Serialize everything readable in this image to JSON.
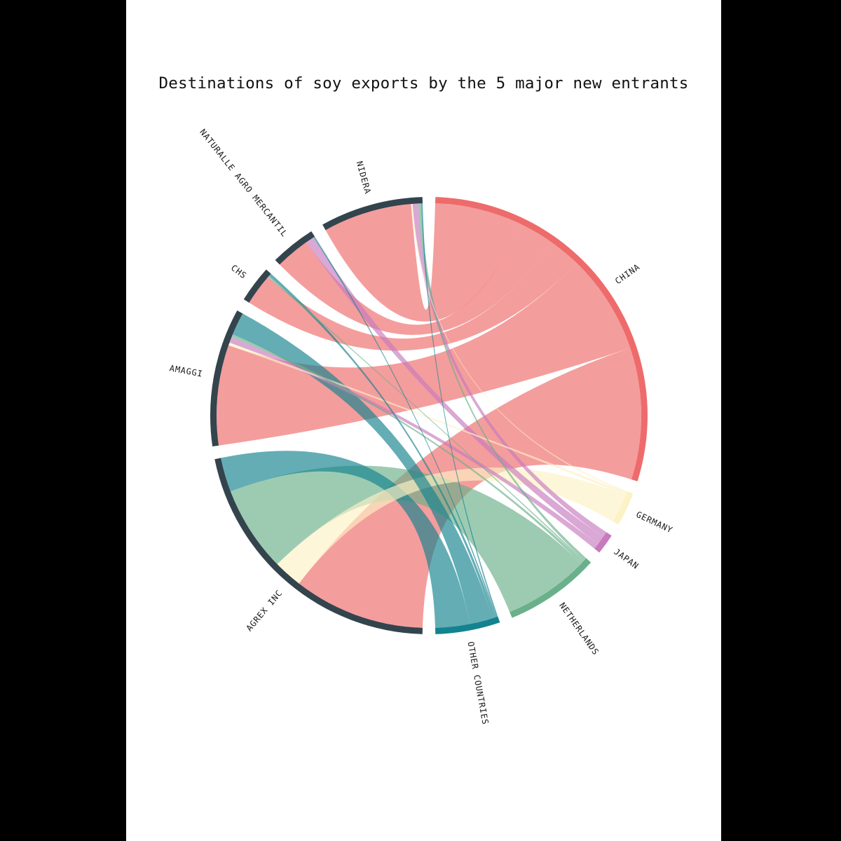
{
  "chart_data": {
    "type": "chord",
    "title": "Destinations of soy exports by the 5 major new entrants",
    "exporters": [
      "NIDERA",
      "NATURALLE AGRO MERCANTIL",
      "CHS",
      "AMAGGI",
      "AGREX INC"
    ],
    "destinations": [
      "CHINA",
      "GERMANY",
      "JAPAN",
      "NETHERLANDS",
      "OTHER COUNTRIES"
    ],
    "colors": {
      "exporter_arc": "#33444d",
      "CHINA": "#ee6b6b",
      "GERMANY": "#fdf1c6",
      "JAPAN": "#c77bbd",
      "NETHERLANDS": "#6ab08a",
      "OTHER COUNTRIES": "#13838f"
    },
    "flows": [
      {
        "source": "AGREX INC",
        "target": "CHINA",
        "value": 46
      },
      {
        "source": "AGREX INC",
        "target": "NETHERLANDS",
        "value": 30
      },
      {
        "source": "AGREX INC",
        "target": "OTHER COUNTRIES",
        "value": 12
      },
      {
        "source": "AGREX INC",
        "target": "GERMANY",
        "value": 10
      },
      {
        "source": "AMAGGI",
        "target": "CHINA",
        "value": 35
      },
      {
        "source": "AMAGGI",
        "target": "OTHER COUNTRIES",
        "value": 8
      },
      {
        "source": "AMAGGI",
        "target": "JAPAN",
        "value": 2
      },
      {
        "source": "AMAGGI",
        "target": "GERMANY",
        "value": 1
      },
      {
        "source": "AMAGGI",
        "target": "NETHERLANDS",
        "value": 1
      },
      {
        "source": "CHS",
        "target": "CHINA",
        "value": 11
      },
      {
        "source": "CHS",
        "target": "OTHER COUNTRIES",
        "value": 1
      },
      {
        "source": "CHS",
        "target": "NETHERLANDS",
        "value": 0.5
      },
      {
        "source": "NATURALLE AGRO MERCANTIL",
        "target": "CHINA",
        "value": 12
      },
      {
        "source": "NATURALLE AGRO MERCANTIL",
        "target": "JAPAN",
        "value": 3
      },
      {
        "source": "NATURALLE AGRO MERCANTIL",
        "target": "OTHER COUNTRIES",
        "value": 0.5
      },
      {
        "source": "NIDERA",
        "target": "CHINA",
        "value": 31
      },
      {
        "source": "NIDERA",
        "target": "JAPAN",
        "value": 2
      },
      {
        "source": "NIDERA",
        "target": "NETHERLANDS",
        "value": 1
      },
      {
        "source": "NIDERA",
        "target": "GERMANY",
        "value": 0.5
      },
      {
        "source": "NIDERA",
        "target": "OTHER COUNTRIES",
        "value": 0.5
      }
    ]
  }
}
